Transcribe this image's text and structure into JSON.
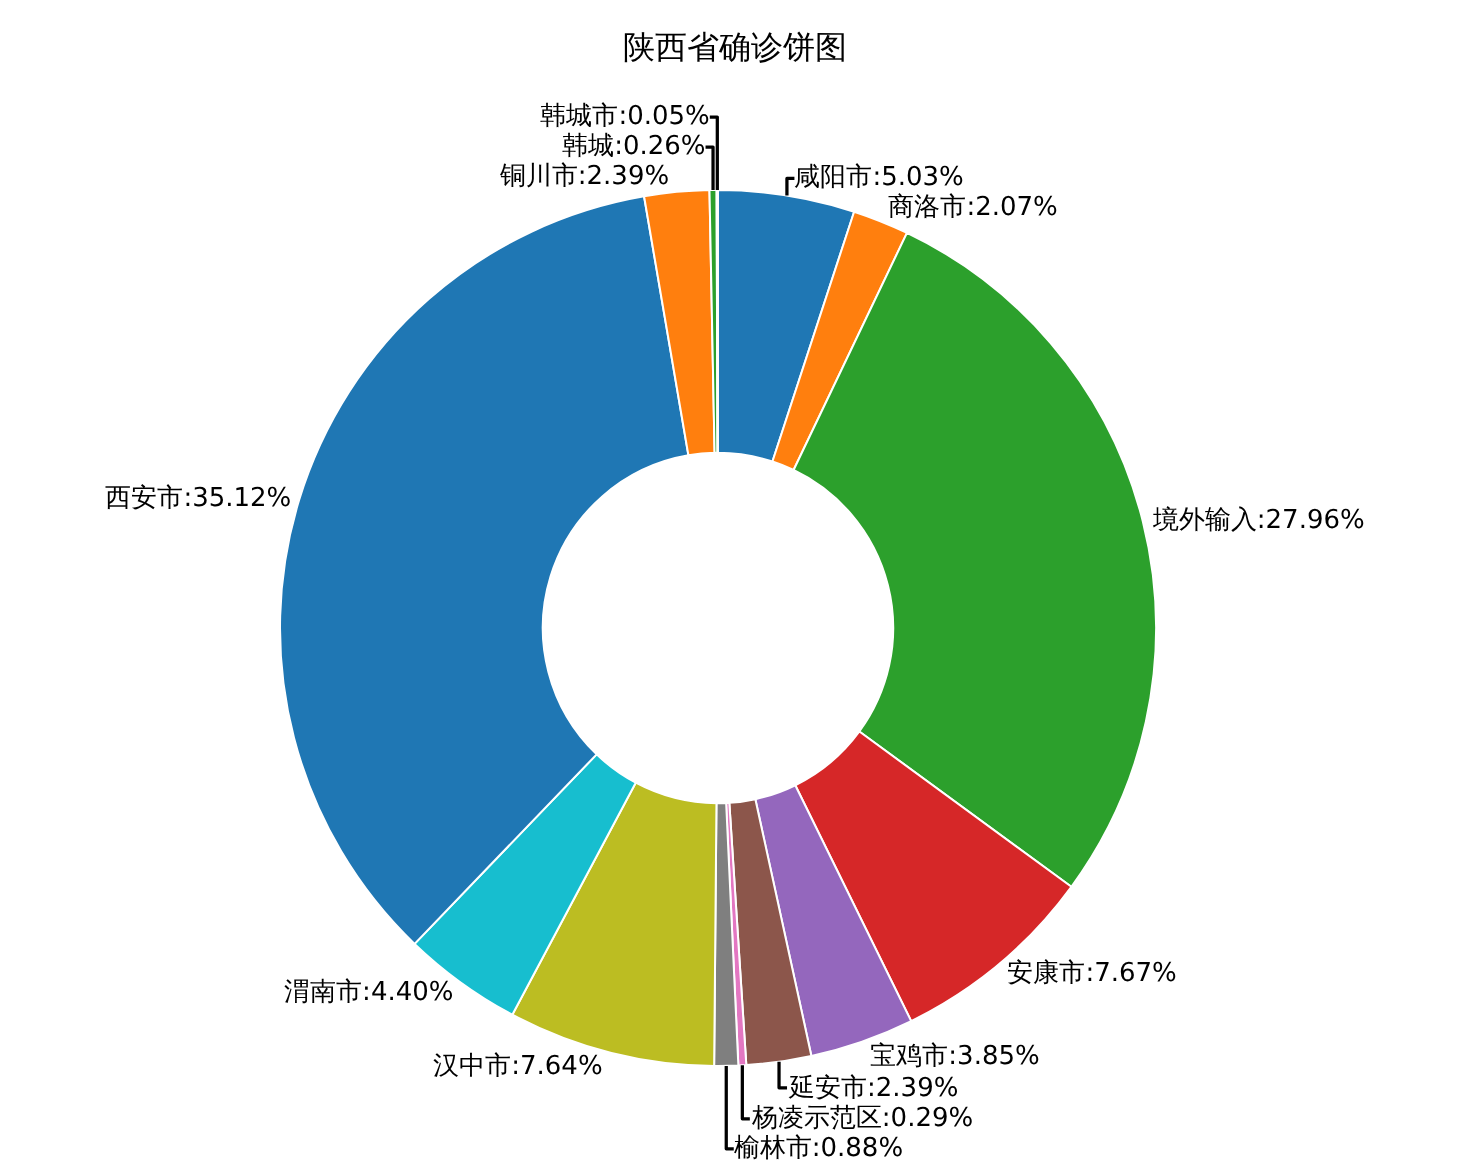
{
  "chart_data": {
    "type": "donut",
    "title": "陕西省确诊饼图",
    "categories": [
      "咸阳市",
      "商洛市",
      "境外输入",
      "安康市",
      "宝鸡市",
      "延安市",
      "杨凌示范区",
      "榆林市",
      "汉中市",
      "渭南市",
      "西安市",
      "铜川市",
      "韩城",
      "韩城市"
    ],
    "values": [
      5.03,
      2.07,
      27.96,
      7.67,
      3.85,
      2.39,
      0.29,
      0.88,
      7.64,
      4.4,
      35.12,
      2.39,
      0.26,
      0.05
    ],
    "value_labels": [
      "5.03%",
      "2.07%",
      "27.96%",
      "7.67%",
      "3.85%",
      "2.39%",
      "0.29%",
      "0.88%",
      "7.64%",
      "4.40%",
      "35.12%",
      "2.39%",
      "0.26%",
      "0.05%"
    ],
    "colors": [
      "#1f77b4",
      "#ff7f0e",
      "#2ca02c",
      "#d62728",
      "#9467bd",
      "#8c564b",
      "#e377c2",
      "#7f7f7f",
      "#bcbd22",
      "#17becf",
      "#1f77b4",
      "#ff7f0e",
      "#2ca02c",
      "#d62728"
    ],
    "legend": false
  }
}
